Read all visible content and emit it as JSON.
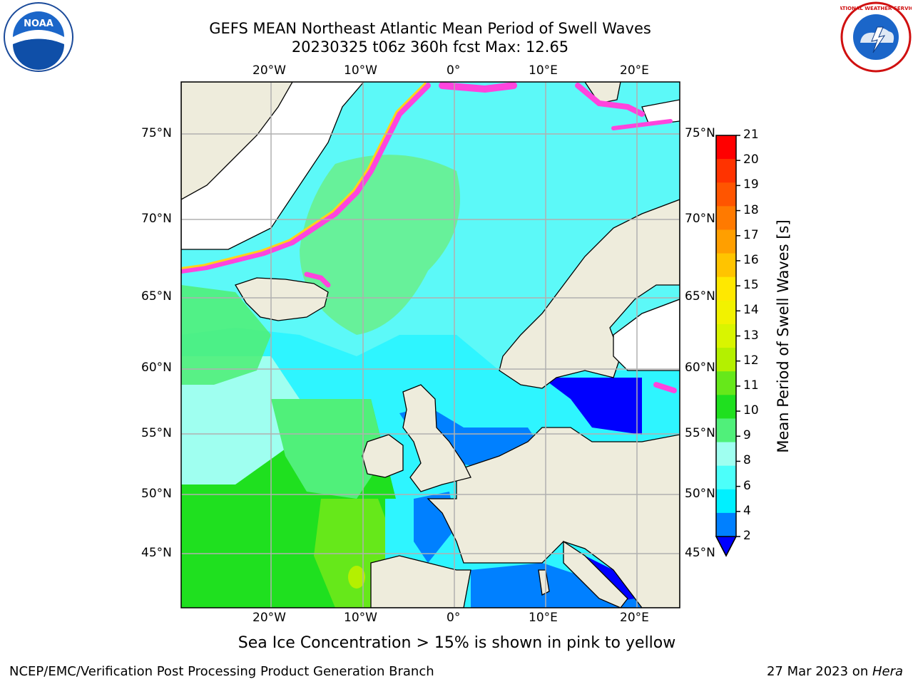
{
  "title": {
    "line1": "GEFS MEAN Northeast Atlantic Mean Period of Swell Waves",
    "line2": "20230325 t06z 360h fcst   Max: 12.65"
  },
  "footer": {
    "note": "Sea Ice Concentration > 15% is shown in pink to yellow",
    "left": "NCEP/EMC/Verification Post Processing Product Generation Branch",
    "right_date": "27 Mar 2023 on ",
    "right_machine": "Hera"
  },
  "logos": {
    "left": "noaa-logo",
    "right": "national-weather-service-logo",
    "left_text": "NOAA",
    "right_text": "NATIONAL WEATHER SERVICE"
  },
  "axes": {
    "lon_labels": [
      "20°W",
      "10°W",
      "0°",
      "10°E",
      "20°E"
    ],
    "lat_labels": [
      "75°N",
      "70°N",
      "65°N",
      "60°N",
      "55°N",
      "50°N",
      "45°N"
    ]
  },
  "colorbar": {
    "label": "Mean Period of Swell Waves [s]",
    "ticks": [
      "21",
      "20",
      "19",
      "18",
      "17",
      "16",
      "15",
      "14",
      "13",
      "12",
      "11",
      "10",
      "9",
      "8",
      "6",
      "4",
      "2"
    ],
    "colors": [
      "#ff0000",
      "#ff3300",
      "#ff5500",
      "#ff7a00",
      "#ff9f00",
      "#ffc400",
      "#ffe800",
      "#f2f200",
      "#d9f500",
      "#b4f000",
      "#66e81a",
      "#1fe01f",
      "#50f07a",
      "#9ffff0",
      "#4cfffa",
      "#00f0ff",
      "#0080ff",
      "#0000ff"
    ]
  },
  "colors": {
    "land": "#eeecdc",
    "ice_land": "#ffffff",
    "grid": "#b0b0b0",
    "sea_ice": "#ff44dd"
  }
}
